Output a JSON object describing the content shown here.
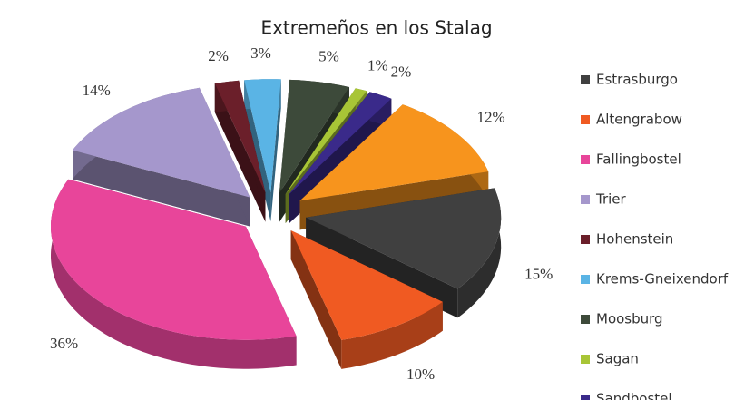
{
  "chart_data": {
    "type": "pie3d",
    "title": "Extremeños en los Stalag",
    "categories": [
      "Estrasburgo",
      "Altengrabow",
      "Fallingbostel",
      "Trier",
      "Hohenstein",
      "Krems-Gneixendorf",
      "Moosburg",
      "Sagan",
      "Sandbostel",
      null
    ],
    "values": [
      15,
      10,
      36,
      14,
      2,
      3,
      5,
      1,
      2,
      12
    ],
    "value_labels": [
      "15%",
      "10%",
      "36%",
      "14%",
      "2%",
      "3%",
      "5%",
      "1%",
      "2%",
      "12%"
    ],
    "colors": [
      "#404040",
      "#f05a22",
      "#e8459a",
      "#a597cc",
      "#6b1f2a",
      "#5ab4e5",
      "#3d4a3a",
      "#a8c536",
      "#3a2a8a",
      "#f7941d"
    ],
    "legend": "right"
  }
}
